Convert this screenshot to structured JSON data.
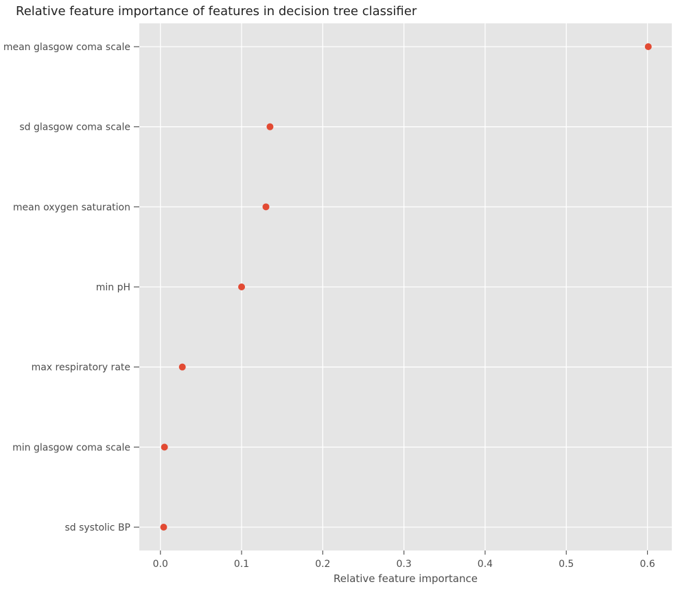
{
  "chart_data": {
    "type": "scatter",
    "title": "Relative feature importance of features in decision tree classifier",
    "xlabel": "Relative feature importance",
    "ylabel": "",
    "xlim": [
      -0.026,
      0.63
    ],
    "xticks": [
      0.0,
      0.1,
      0.2,
      0.3,
      0.4,
      0.5,
      0.6
    ],
    "xtick_labels": [
      "0.0",
      "0.1",
      "0.2",
      "0.3",
      "0.4",
      "0.5",
      "0.6"
    ],
    "categories": [
      "mean glasgow coma scale",
      "sd glasgow coma scale",
      "mean oxygen saturation",
      "min pH",
      "max respiratory rate",
      "min glasgow coma scale",
      "sd systolic BP"
    ],
    "values": [
      0.601,
      0.135,
      0.13,
      0.1,
      0.027,
      0.005,
      0.004
    ],
    "grid": true,
    "colors": {
      "point": "#e24a33",
      "background": "#e5e5e5",
      "grid": "#ffffff"
    }
  }
}
